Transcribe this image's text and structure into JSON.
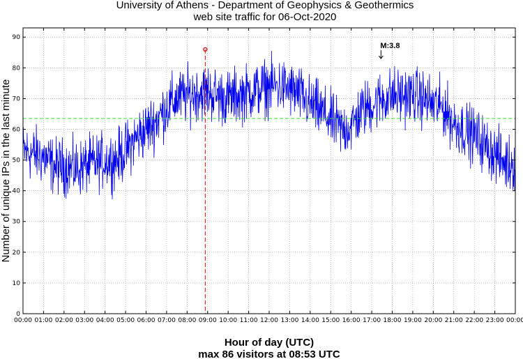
{
  "chart_data": {
    "type": "line",
    "title": "University of Athens - Department of Geophysics & Geothermics",
    "subtitle": "web site traffic for 06-Oct-2020",
    "xlabel": "Hour of day (UTC)",
    "ylabel": "Number of unique IPs in the last minute",
    "footer": "max 86 visitors at 08:53 UTC",
    "x_ticks": [
      "00:00",
      "01:00",
      "02:00",
      "03:00",
      "04:00",
      "05:00",
      "06:00",
      "07:00",
      "08:00",
      "09:00",
      "10:00",
      "11:00",
      "12:00",
      "13:00",
      "14:00",
      "15:00",
      "16:00",
      "17:00",
      "18:00",
      "19:00",
      "20:00",
      "21:00",
      "22:00",
      "23:00",
      "00:00"
    ],
    "y_ticks": [
      0,
      10,
      20,
      30,
      40,
      50,
      60,
      70,
      80,
      90
    ],
    "xlim_hours": [
      0,
      24
    ],
    "ylim": [
      0,
      93
    ],
    "grid": true,
    "mean_line": {
      "value": 63.5,
      "color": "#33dd33",
      "style": "dashed"
    },
    "max_marker": {
      "hour": 8.883,
      "value": 86,
      "color": "#dd0000"
    },
    "annotation": {
      "text": "M:3.8",
      "hour": 17.45,
      "value": 83
    },
    "series_color": "#0000ee",
    "series": [
      {
        "hours": [
          0,
          0.5,
          1,
          1.5,
          2,
          2.5,
          3,
          3.5,
          4,
          4.5,
          5,
          5.5,
          6,
          6.5,
          7,
          7.5,
          8,
          8.5,
          9,
          9.5,
          10,
          10.5,
          11,
          11.5,
          12,
          12.5,
          13,
          13.5,
          14,
          14.5,
          15,
          15.5,
          16,
          16.5,
          17,
          17.5,
          18,
          18.5,
          19,
          19.5,
          20,
          20.5,
          21,
          21.5,
          22,
          22.5,
          23,
          23.5,
          24
        ],
        "values": [
          53,
          52,
          51,
          48,
          48,
          47,
          48,
          49,
          50,
          50,
          53,
          57,
          60,
          63,
          67,
          70,
          71,
          72,
          72,
          71,
          70,
          71,
          72,
          73,
          74,
          74,
          73,
          71,
          68,
          66,
          63,
          60,
          61,
          66,
          68,
          70,
          71,
          71,
          71,
          70,
          68,
          67,
          62,
          60,
          58,
          55,
          52,
          49,
          49
        ]
      }
    ]
  }
}
